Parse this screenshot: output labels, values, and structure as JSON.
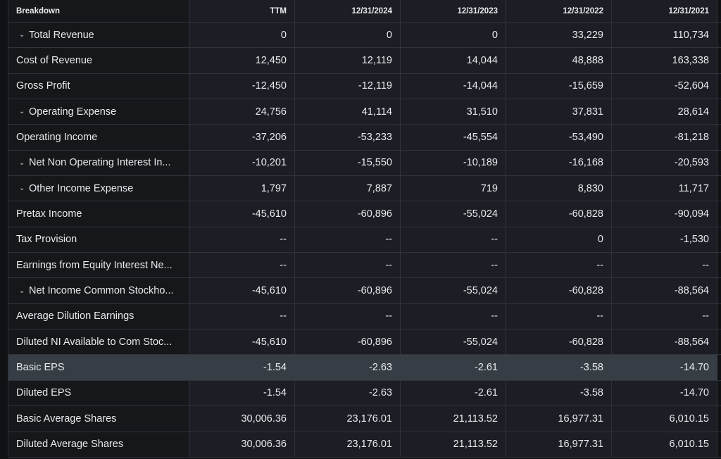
{
  "columns": [
    "Breakdown",
    "TTM",
    "12/31/2024",
    "12/31/2023",
    "12/31/2022",
    "12/31/2021"
  ],
  "rows": [
    {
      "label": "Total Revenue",
      "expandable": true,
      "values": [
        "0",
        "0",
        "0",
        "33,229",
        "110,734"
      ]
    },
    {
      "label": "Cost of Revenue",
      "expandable": false,
      "values": [
        "12,450",
        "12,119",
        "14,044",
        "48,888",
        "163,338"
      ]
    },
    {
      "label": "Gross Profit",
      "expandable": false,
      "values": [
        "-12,450",
        "-12,119",
        "-14,044",
        "-15,659",
        "-52,604"
      ]
    },
    {
      "label": "Operating Expense",
      "expandable": true,
      "values": [
        "24,756",
        "41,114",
        "31,510",
        "37,831",
        "28,614"
      ]
    },
    {
      "label": "Operating Income",
      "expandable": false,
      "values": [
        "-37,206",
        "-53,233",
        "-45,554",
        "-53,490",
        "-81,218"
      ]
    },
    {
      "label": "Net Non Operating Interest In...",
      "expandable": true,
      "values": [
        "-10,201",
        "-15,550",
        "-10,189",
        "-16,168",
        "-20,593"
      ]
    },
    {
      "label": "Other Income Expense",
      "expandable": true,
      "values": [
        "1,797",
        "7,887",
        "719",
        "8,830",
        "11,717"
      ]
    },
    {
      "label": "Pretax Income",
      "expandable": false,
      "values": [
        "-45,610",
        "-60,896",
        "-55,024",
        "-60,828",
        "-90,094"
      ]
    },
    {
      "label": "Tax Provision",
      "expandable": false,
      "values": [
        "--",
        "--",
        "--",
        "0",
        "-1,530"
      ]
    },
    {
      "label": "Earnings from Equity Interest Ne...",
      "expandable": false,
      "values": [
        "--",
        "--",
        "--",
        "--",
        "--"
      ]
    },
    {
      "label": "Net Income Common Stockho...",
      "expandable": true,
      "values": [
        "-45,610",
        "-60,896",
        "-55,024",
        "-60,828",
        "-88,564"
      ]
    },
    {
      "label": "Average Dilution Earnings",
      "expandable": false,
      "values": [
        "--",
        "--",
        "--",
        "--",
        "--"
      ]
    },
    {
      "label": "Diluted NI Available to Com Stoc...",
      "expandable": false,
      "values": [
        "-45,610",
        "-60,896",
        "-55,024",
        "-60,828",
        "-88,564"
      ]
    },
    {
      "label": "Basic EPS",
      "expandable": false,
      "highlighted": true,
      "values": [
        "-1.54",
        "-2.63",
        "-2.61",
        "-3.58",
        "-14.70"
      ]
    },
    {
      "label": "Diluted EPS",
      "expandable": false,
      "values": [
        "-1.54",
        "-2.63",
        "-2.61",
        "-3.58",
        "-14.70"
      ]
    },
    {
      "label": "Basic Average Shares",
      "expandable": false,
      "values": [
        "30,006.36",
        "23,176.01",
        "21,113.52",
        "16,977.31",
        "6,010.15"
      ]
    },
    {
      "label": "Diluted Average Shares",
      "expandable": false,
      "values": [
        "30,006.36",
        "23,176.01",
        "21,113.52",
        "16,977.31",
        "6,010.15"
      ]
    }
  ],
  "chevron_glyph": "⌄"
}
